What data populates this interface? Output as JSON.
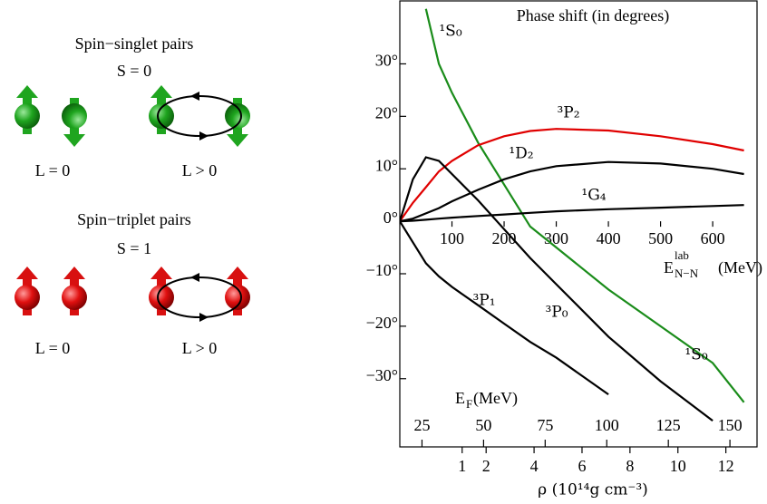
{
  "diagram": {
    "singlet": {
      "title": "Spin−singlet pairs",
      "spin": "S = 0",
      "left": "L = 0",
      "right": "L > 0"
    },
    "triplet": {
      "title": "Spin−triplet pairs",
      "spin": "S = 1",
      "left": "L = 0",
      "right": "L > 0"
    }
  },
  "chart_data": {
    "type": "line",
    "title": "Phase shift (in degrees)",
    "x_label": {
      "main": "E",
      "sup": "lab",
      "sub": "N−N",
      "unit": "(MeV)"
    },
    "x": [
      0,
      25,
      50,
      75,
      100,
      150,
      200,
      250,
      300,
      400,
      500,
      600,
      660
    ],
    "xlim": [
      0,
      685
    ],
    "xticks": [
      100,
      200,
      300,
      400,
      500,
      600
    ],
    "ylim": [
      -43,
      42
    ],
    "yticks": [
      {
        "value": 30,
        "label": "30°"
      },
      {
        "value": 20,
        "label": "20°"
      },
      {
        "value": 10,
        "label": "10°"
      },
      {
        "value": 0,
        "label": "0°"
      },
      {
        "value": -10,
        "label": "−10°"
      },
      {
        "value": -20,
        "label": "−20°"
      },
      {
        "value": -30,
        "label": "−30°"
      }
    ],
    "x2_label": {
      "main": "E",
      "sub": "F",
      "unit": "(MeV)"
    },
    "x2lim": [
      16,
      161
    ],
    "x2ticks": [
      25,
      50,
      75,
      100,
      125,
      150
    ],
    "x3_label": "ρ (10¹⁴g cm⁻³)",
    "x3lim": [
      -1.6,
      13.3
    ],
    "x3ticks": [
      1,
      2,
      4,
      6,
      8,
      10,
      12
    ],
    "series": [
      {
        "name": "¹S₀",
        "color": "#1a8c1a",
        "values": [
          null,
          null,
          40.5,
          30,
          24.5,
          15,
          7,
          -1,
          -5,
          -13,
          -20,
          -27,
          -34.5
        ]
      },
      {
        "name": "³P₂",
        "color": "#e00000",
        "values": [
          0,
          3.5,
          6.5,
          9.5,
          11.5,
          14.5,
          16.2,
          17.2,
          17.6,
          17.3,
          16.2,
          14.7,
          13.5
        ]
      },
      {
        "name": "¹D₂",
        "color": "#000000",
        "values": [
          0,
          0.5,
          1.5,
          2.5,
          3.8,
          6,
          8,
          9.5,
          10.5,
          11.3,
          11,
          10,
          9
        ]
      },
      {
        "name": "¹G₄",
        "color": "#000000",
        "values": [
          0,
          0.1,
          0.3,
          0.5,
          0.7,
          1,
          1.3,
          1.6,
          1.9,
          2.3,
          2.6,
          2.9,
          3.1
        ]
      },
      {
        "name": "³P₀",
        "color": "#000000",
        "values": [
          0,
          8,
          12.2,
          11.5,
          9,
          4,
          -1.5,
          -7,
          -12,
          -22,
          -30.5,
          -38,
          null
        ]
      },
      {
        "name": "³P₁",
        "color": "#000000",
        "values": [
          0,
          -4,
          -8,
          -10.5,
          -12.5,
          -16,
          -19.5,
          -23,
          -26,
          -33,
          null,
          null,
          null
        ]
      }
    ]
  }
}
